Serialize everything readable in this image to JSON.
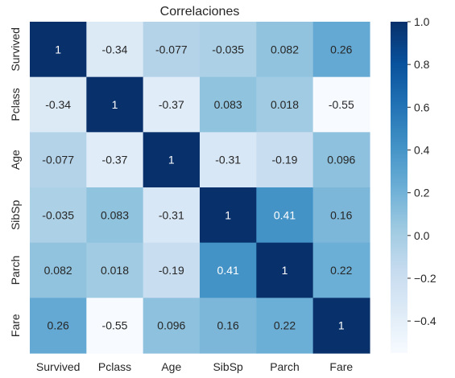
{
  "chart_data": {
    "type": "heatmap",
    "title": "Correlaciones",
    "x_categories": [
      "Survived",
      "Pclass",
      "Age",
      "SibSp",
      "Parch",
      "Fare"
    ],
    "y_categories": [
      "Survived",
      "Pclass",
      "Age",
      "SibSp",
      "Parch",
      "Fare"
    ],
    "values": [
      [
        1,
        -0.34,
        -0.077,
        -0.035,
        0.082,
        0.26
      ],
      [
        -0.34,
        1,
        -0.37,
        0.083,
        0.018,
        -0.55
      ],
      [
        -0.077,
        -0.37,
        1,
        -0.31,
        -0.19,
        0.096
      ],
      [
        -0.035,
        0.083,
        -0.31,
        1,
        0.41,
        0.16
      ],
      [
        0.082,
        0.018,
        -0.19,
        0.41,
        1,
        0.22
      ],
      [
        0.26,
        -0.55,
        0.096,
        0.16,
        0.22,
        1
      ]
    ],
    "annotations": [
      [
        "1",
        "-0.34",
        "-0.077",
        "-0.035",
        "0.082",
        "0.26"
      ],
      [
        "-0.34",
        "1",
        "-0.37",
        "0.083",
        "0.018",
        "-0.55"
      ],
      [
        "-0.077",
        "-0.37",
        "1",
        "-0.31",
        "-0.19",
        "0.096"
      ],
      [
        "-0.035",
        "0.083",
        "-0.31",
        "1",
        "0.41",
        "0.16"
      ],
      [
        "0.082",
        "0.018",
        "-0.19",
        "0.41",
        "1",
        "0.22"
      ],
      [
        "0.26",
        "-0.55",
        "0.096",
        "0.16",
        "0.22",
        "1"
      ]
    ],
    "colorbar": {
      "range": [
        -0.55,
        1
      ],
      "ticks": [
        1.0,
        0.8,
        0.6,
        0.4,
        0.2,
        0.0,
        -0.2,
        -0.4
      ],
      "tick_labels": [
        "1.0",
        "0.8",
        "0.6",
        "0.4",
        "0.2",
        "0.0",
        "−0.2",
        "−0.4"
      ],
      "colormap": "Blues"
    },
    "grid": false
  }
}
